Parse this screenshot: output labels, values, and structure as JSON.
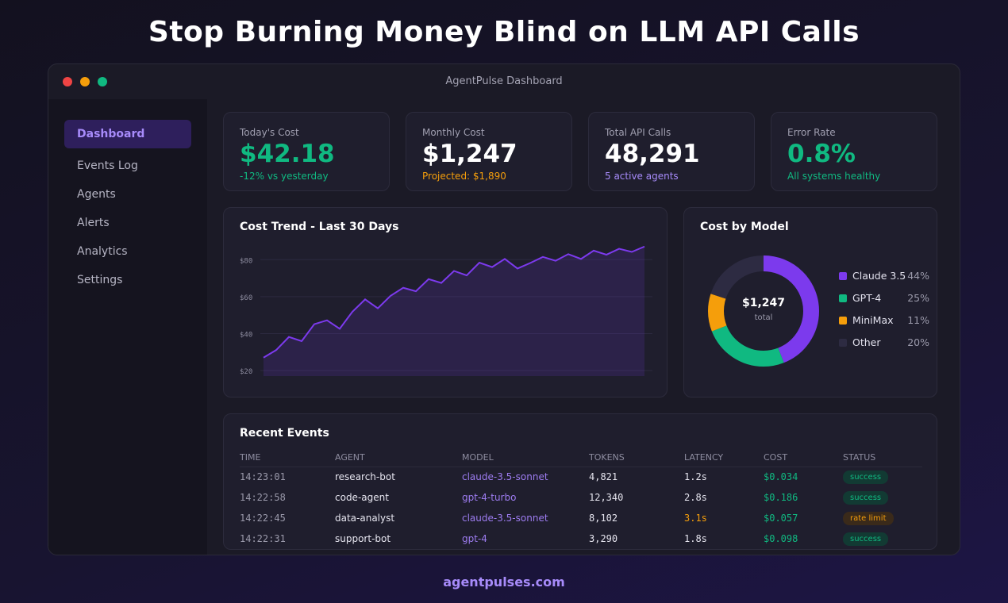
{
  "headline": "Stop Burning Money Blind on LLM API Calls",
  "footer": "agentpulses.com",
  "window": {
    "title": "AgentPulse Dashboard"
  },
  "sidebar": {
    "items": [
      {
        "label": "Dashboard",
        "active": true
      },
      {
        "label": "Events Log"
      },
      {
        "label": "Agents"
      },
      {
        "label": "Alerts"
      },
      {
        "label": "Analytics"
      },
      {
        "label": "Settings"
      }
    ]
  },
  "stats": [
    {
      "label": "Today's Cost",
      "value": "$42.18",
      "sub": "-12% vs yesterday",
      "value_color": "#10b981",
      "sub_color": "#10b981"
    },
    {
      "label": "Monthly Cost",
      "value": "$1,247",
      "sub": "Projected: $1,890",
      "value_color": "#ffffff",
      "sub_color": "#f59e0b"
    },
    {
      "label": "Total API Calls",
      "value": "48,291",
      "sub": "5 active agents",
      "value_color": "#ffffff",
      "sub_color": "#a78bfa"
    },
    {
      "label": "Error Rate",
      "value": "0.8%",
      "sub": "All systems healthy",
      "value_color": "#10b981",
      "sub_color": "#10b981"
    }
  ],
  "chart_data": [
    {
      "type": "area",
      "title": "Cost Trend - Last 30 Days",
      "y_ticks": [
        "$80",
        "$60",
        "$40",
        "$20"
      ],
      "y_tick_values": [
        80,
        60,
        40,
        20
      ],
      "ylim": [
        17,
        90
      ],
      "grid": true,
      "color": "#7c3aed",
      "values": [
        27.0,
        31.1,
        38.2,
        35.9,
        45.1,
        47.2,
        42.6,
        51.8,
        58.5,
        53.7,
        60.4,
        64.8,
        62.9,
        69.5,
        67.4,
        73.9,
        71.5,
        78.4,
        76.0,
        80.4,
        75.2,
        78.2,
        81.5,
        79.4,
        83.0,
        80.4,
        84.9,
        82.7,
        85.9,
        84.2,
        87.1
      ]
    },
    {
      "type": "pie",
      "title": "Cost by Model",
      "center_value": "$1,247",
      "center_label": "total",
      "legend": "right",
      "slices": [
        {
          "name": "Claude 3.5",
          "value": 44,
          "label": "44%",
          "color": "#7c3aed"
        },
        {
          "name": "GPT-4",
          "value": 25,
          "label": "25%",
          "color": "#10b981"
        },
        {
          "name": "MiniMax",
          "value": 11,
          "label": "11%",
          "color": "#f59e0b"
        },
        {
          "name": "Other",
          "value": 20,
          "label": "20%",
          "color": "#2d2b42"
        }
      ]
    }
  ],
  "events": {
    "title": "Recent Events",
    "columns": [
      "TIME",
      "AGENT",
      "MODEL",
      "TOKENS",
      "LATENCY",
      "COST",
      "STATUS"
    ],
    "rows": [
      {
        "time": "14:23:01",
        "agent": "research-bot",
        "model": "claude-3.5-sonnet",
        "tokens": "4,821",
        "latency": "1.2s",
        "cost": "$0.034",
        "status": "success"
      },
      {
        "time": "14:22:58",
        "agent": "code-agent",
        "model": "gpt-4-turbo",
        "tokens": "12,340",
        "latency": "2.8s",
        "cost": "$0.186",
        "status": "success"
      },
      {
        "time": "14:22:45",
        "agent": "data-analyst",
        "model": "claude-3.5-sonnet",
        "tokens": "8,102",
        "latency": "3.1s",
        "latency_warn": true,
        "cost": "$0.057",
        "status": "rate limit"
      },
      {
        "time": "14:22:31",
        "agent": "support-bot",
        "model": "gpt-4",
        "tokens": "3,290",
        "latency": "1.8s",
        "cost": "$0.098",
        "status": "success"
      }
    ]
  }
}
